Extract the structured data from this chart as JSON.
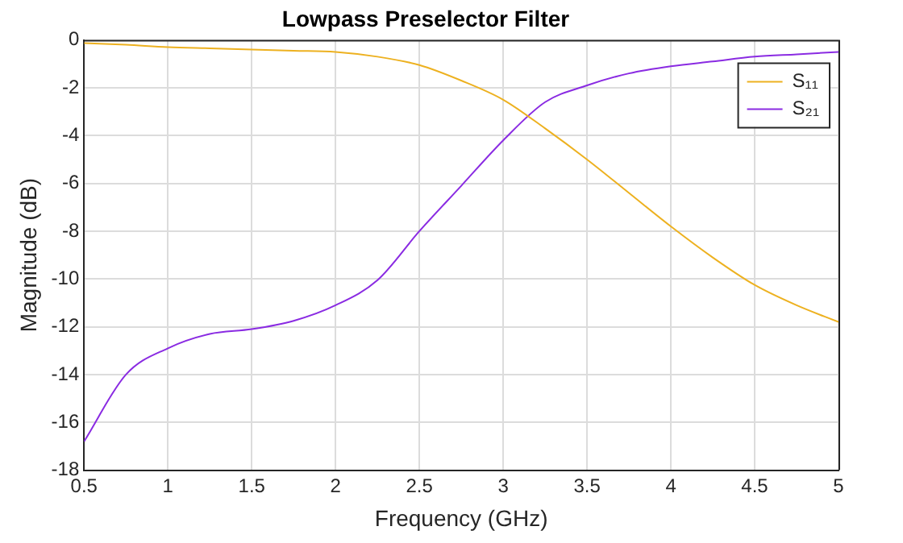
{
  "chart_data": {
    "type": "line",
    "title": "Lowpass Preselector Filter",
    "xlabel": "Frequency (GHz)",
    "ylabel": "Magnitude (dB)",
    "x": [
      0.5,
      0.75,
      1,
      1.25,
      1.5,
      1.75,
      2,
      2.25,
      2.5,
      2.75,
      3,
      3.25,
      3.5,
      3.75,
      4,
      4.25,
      4.5,
      4.75,
      5
    ],
    "series": [
      {
        "name": "S₁₁",
        "color": "#edb120",
        "values": [
          -0.13,
          -0.2,
          -0.3,
          -0.35,
          -0.4,
          -0.45,
          -0.5,
          -0.7,
          -1.05,
          -1.7,
          -2.5,
          -3.7,
          -5.0,
          -6.4,
          -7.8,
          -9.1,
          -10.25,
          -11.1,
          -11.8
        ]
      },
      {
        "name": "S₂₁",
        "color": "#8a2be2",
        "values": [
          -16.8,
          -14.0,
          -12.9,
          -12.3,
          -12.1,
          -11.75,
          -11.1,
          -10.05,
          -8.0,
          -6.1,
          -4.2,
          -2.6,
          -1.9,
          -1.4,
          -1.1,
          -0.9,
          -0.7,
          -0.6,
          -0.5
        ]
      }
    ],
    "xlim": [
      0.5,
      5
    ],
    "xticks": [
      0.5,
      1,
      1.5,
      2,
      2.5,
      3,
      3.5,
      4,
      4.5,
      5
    ],
    "ylim": [
      -18,
      0
    ],
    "yticks": [
      -18,
      -16,
      -14,
      -12,
      -10,
      -8,
      -6,
      -4,
      -2,
      0
    ],
    "grid": true,
    "legend": "top right",
    "marker": "none",
    "line_style": "solid"
  }
}
